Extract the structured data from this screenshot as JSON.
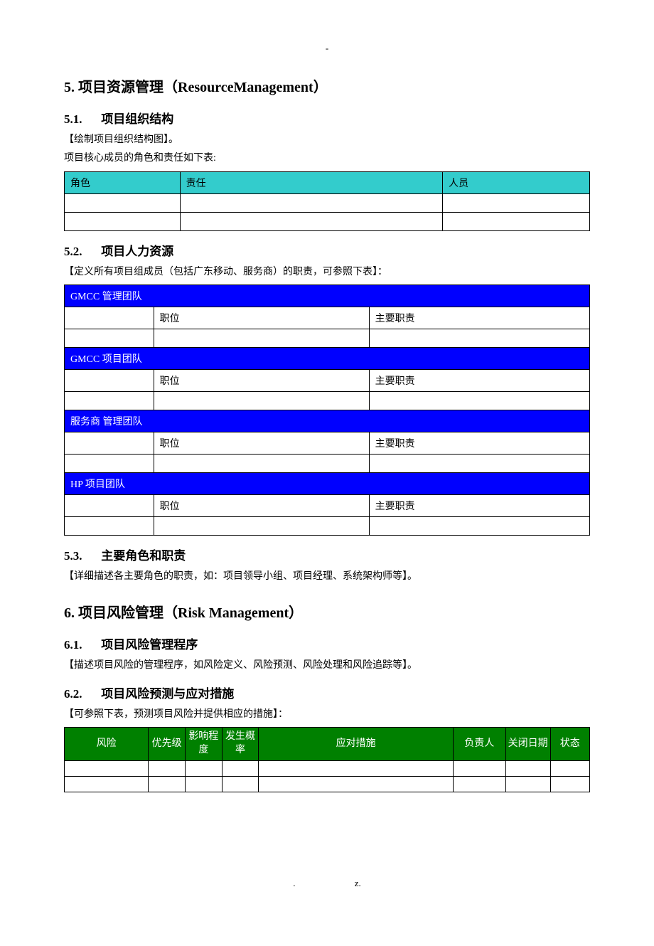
{
  "top_dash": "-",
  "s5": {
    "heading": "5.  项目资源管理（ResourceManagement）",
    "s51": {
      "heading_num": "5.1.",
      "heading_text": "项目组织结构",
      "note1": "【绘制项目组织结构图】。",
      "note2": "项目核心成员的角色和责任如下表:",
      "table": {
        "header_bg": "#33cccc",
        "columns": [
          "角色",
          "责任",
          "人员"
        ],
        "rows": [
          [
            "",
            "",
            ""
          ],
          [
            "",
            "",
            ""
          ]
        ]
      }
    },
    "s52": {
      "heading_num": "5.2.",
      "heading_text": "项目人力资源",
      "note": "【定义所有项目组成员（包括广东移动、服务商）的职责，可参照下表】：",
      "table": {
        "section_bg": "#0000ff",
        "section_fg": "#ffffff",
        "col_headers": [
          "",
          "职位",
          "主要职责"
        ],
        "sections": [
          {
            "title": "GMCC 管理团队"
          },
          {
            "title": "GMCC 项目团队"
          },
          {
            "title": "服务商 管理团队"
          },
          {
            "title": "HP 项目团队"
          }
        ]
      }
    },
    "s53": {
      "heading_num": "5.3.",
      "heading_text": "主要角色和职责",
      "note": "【详细描述各主要角色的职责，如：项目领导小组、项目经理、系统架构师等】。"
    }
  },
  "s6": {
    "heading": "6.  项目风险管理（Risk Management）",
    "s61": {
      "heading_num": "6.1.",
      "heading_text": "项目风险管理程序",
      "note": "【描述项目风险的管理程序，如风险定义、风险预测、风险处理和风险追踪等】。"
    },
    "s62": {
      "heading_num": "6.2.",
      "heading_text": "项目风险预测与应对措施",
      "note": "【可参照下表，预测项目风险并提供相应的措施】：",
      "table": {
        "header_bg": "#008000",
        "header_fg": "#ffffff",
        "columns": [
          "风险",
          "优先级",
          "影响程度",
          "发生概率",
          "应对措施",
          "负责人",
          "关闭日期",
          "状态"
        ],
        "rows": [
          [
            "",
            "",
            "",
            "",
            "",
            "",
            "",
            ""
          ],
          [
            "",
            "",
            "",
            "",
            "",
            "",
            "",
            ""
          ]
        ]
      }
    }
  },
  "footer": {
    "dot": ".",
    "z": "z."
  }
}
